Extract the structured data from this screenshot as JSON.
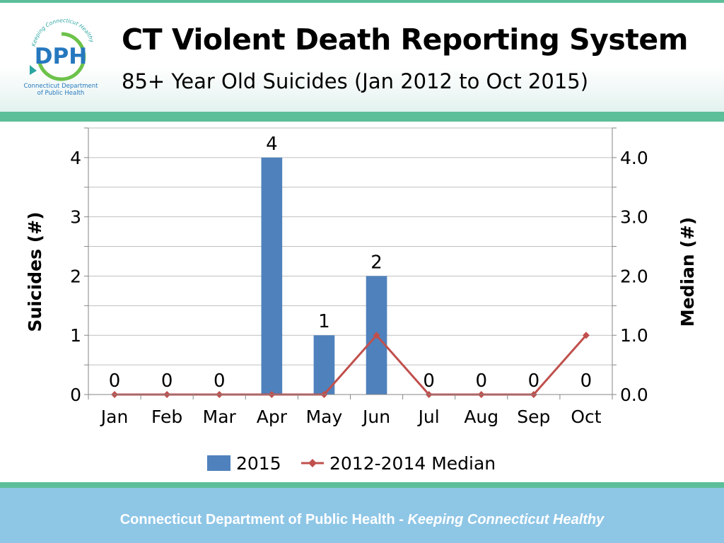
{
  "header": {
    "title": "CT Violent Death Reporting System",
    "subtitle": "85+ Year Old Suicides (Jan 2012 to Oct 2015)",
    "logo": {
      "letters": "DPH",
      "arc_text": "Keeping Connecticut Healthy",
      "caption_line1": "Connecticut Department",
      "caption_line2": "of Public Health",
      "colors": {
        "teal": "#2aa6a0",
        "blue": "#2678be",
        "green": "#6cc24a"
      }
    }
  },
  "chart_data": {
    "type": "bar",
    "categories": [
      "Jan",
      "Feb",
      "Mar",
      "Apr",
      "May",
      "Jun",
      "Jul",
      "Aug",
      "Sep",
      "Oct"
    ],
    "series": [
      {
        "name": "2015",
        "kind": "bar",
        "axis": "left",
        "color": "#4f81bd",
        "values": [
          0,
          0,
          0,
          4,
          1,
          2,
          0,
          0,
          0,
          0
        ],
        "data_labels": [
          "0",
          "0",
          "0",
          "4",
          "1",
          "2",
          "0",
          "0",
          "0",
          "0"
        ]
      },
      {
        "name": "2012-2014 Median",
        "kind": "line",
        "axis": "right",
        "color": "#c0504d",
        "marker": "diamond",
        "values": [
          0,
          0,
          0,
          0,
          0,
          1,
          0,
          0,
          0,
          1
        ]
      }
    ],
    "ylabel": "Suicides (#)",
    "y2label": "Median (#)",
    "ylim": [
      0,
      4.5
    ],
    "y2lim": [
      0,
      4.5
    ],
    "yticks": [
      0,
      1,
      2,
      3,
      4
    ],
    "yticklabels": [
      "0",
      "1",
      "2",
      "3",
      "4"
    ],
    "y2ticks": [
      0,
      1,
      2,
      3,
      4
    ],
    "y2ticklabels": [
      "0.0",
      "1.0",
      "2.0",
      "3.0",
      "4.0"
    ],
    "minor_grid_step": 0.5,
    "grid": true,
    "legend_position": "bottom"
  },
  "footer": {
    "text_main": "Connecticut Department of Public Health  - ",
    "text_italic": "Keeping Connecticut Healthy"
  }
}
